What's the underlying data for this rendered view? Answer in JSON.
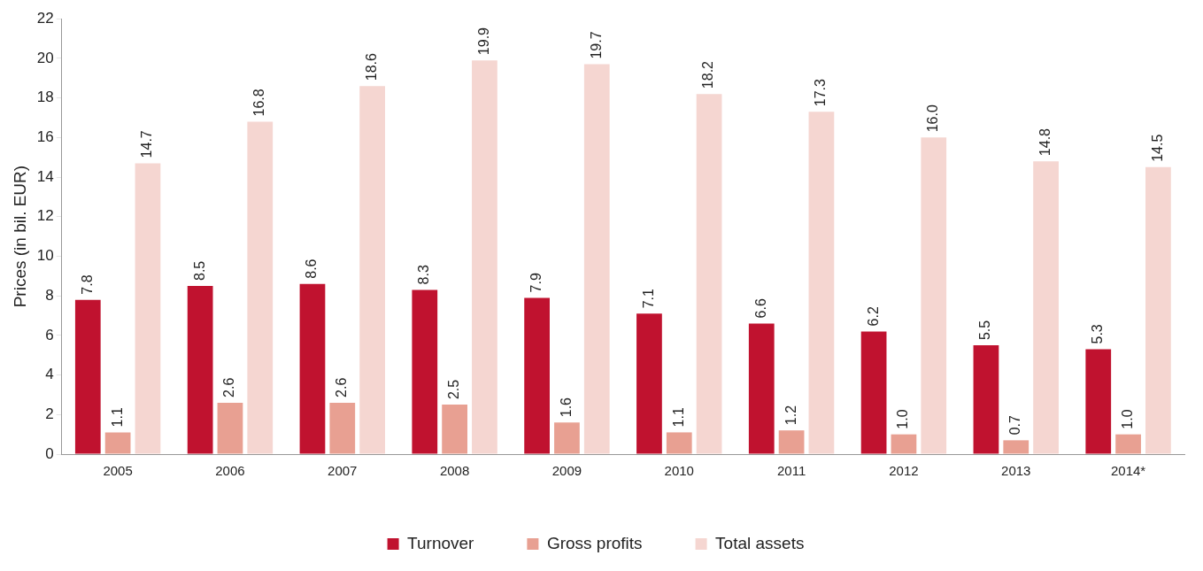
{
  "chart_data": {
    "type": "bar",
    "ylabel": "Prices (in bil. EUR)",
    "categories": [
      "2005",
      "2006",
      "2007",
      "2008",
      "2009",
      "2010",
      "2011",
      "2012",
      "2013",
      "2014*"
    ],
    "series": [
      {
        "name": "Turnover",
        "color": "#c0122f",
        "values": [
          7.8,
          8.5,
          8.6,
          8.3,
          7.9,
          7.1,
          6.6,
          6.2,
          5.5,
          5.3
        ],
        "value_labels": [
          "7.8",
          "8.5",
          "8.6",
          "8.3",
          "7.9",
          "7.1",
          "6.6",
          "6.2",
          "5.5",
          "5.3"
        ]
      },
      {
        "name": "Gross profits",
        "color": "#e8a092",
        "values": [
          1.1,
          2.6,
          2.6,
          2.5,
          1.6,
          1.1,
          1.2,
          1.0,
          0.7,
          1.0
        ],
        "value_labels": [
          "1.1",
          "2.6",
          "2.6",
          "2.5",
          "1.6",
          "1.1",
          "1.2",
          "1.0",
          "0.7",
          "1.0"
        ]
      },
      {
        "name": "Total assets",
        "color": "#f5d6d1",
        "values": [
          14.7,
          16.8,
          18.6,
          19.9,
          19.7,
          18.2,
          17.3,
          16.0,
          14.8,
          14.5
        ],
        "value_labels": [
          "14.7",
          "16.8",
          "18.6",
          "19.9",
          "19.7",
          "18.2",
          "17.3",
          "16.0",
          "14.8",
          "14.5"
        ]
      }
    ],
    "ylim": [
      0,
      22
    ],
    "yticks": [
      0,
      2,
      4,
      6,
      8,
      10,
      12,
      14,
      16,
      18,
      20,
      22
    ],
    "grid": false,
    "legend": "bottom"
  }
}
